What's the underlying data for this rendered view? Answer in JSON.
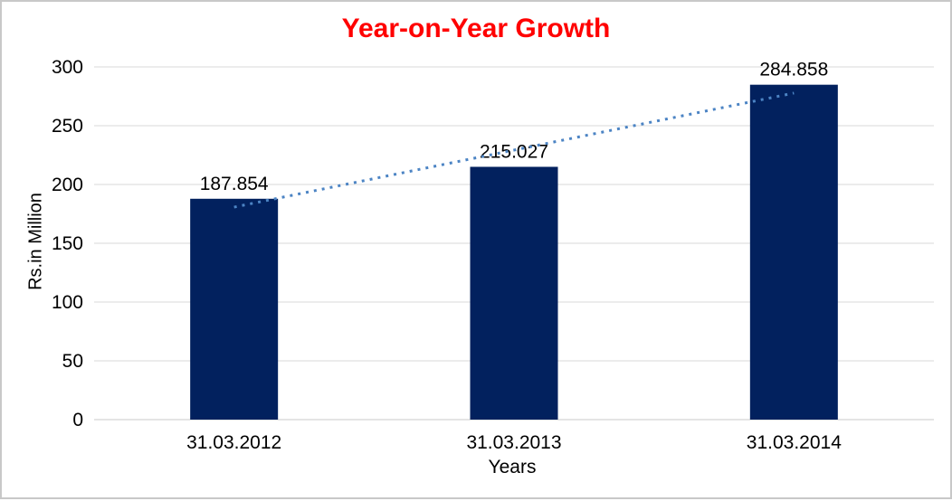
{
  "chart_data": {
    "type": "bar",
    "title": "Year-on-Year Growth",
    "xlabel": "Years",
    "ylabel": "Rs.in Million",
    "categories": [
      "31.03.2012",
      "31.03.2013",
      "31.03.2014"
    ],
    "values": [
      187.854,
      215.027,
      284.858
    ],
    "value_labels": [
      "187.854",
      "215.027",
      "284.858"
    ],
    "ylim": [
      0,
      300
    ],
    "ytick_step": 50,
    "ytick_labels": [
      "0",
      "50",
      "100",
      "150",
      "200",
      "250",
      "300"
    ],
    "grid": true,
    "legend_position": "none",
    "trendline": {
      "type": "linear",
      "style": "dotted"
    },
    "colors": {
      "bar": "#02215E",
      "trendline": "#4C84C4",
      "title": "#FF0000",
      "gridline": "#D9D9D9",
      "axis_line": "#C9C9C9",
      "text": "#000000",
      "background": "#FFFFFF",
      "frame_border": "#C8C8C8"
    }
  }
}
